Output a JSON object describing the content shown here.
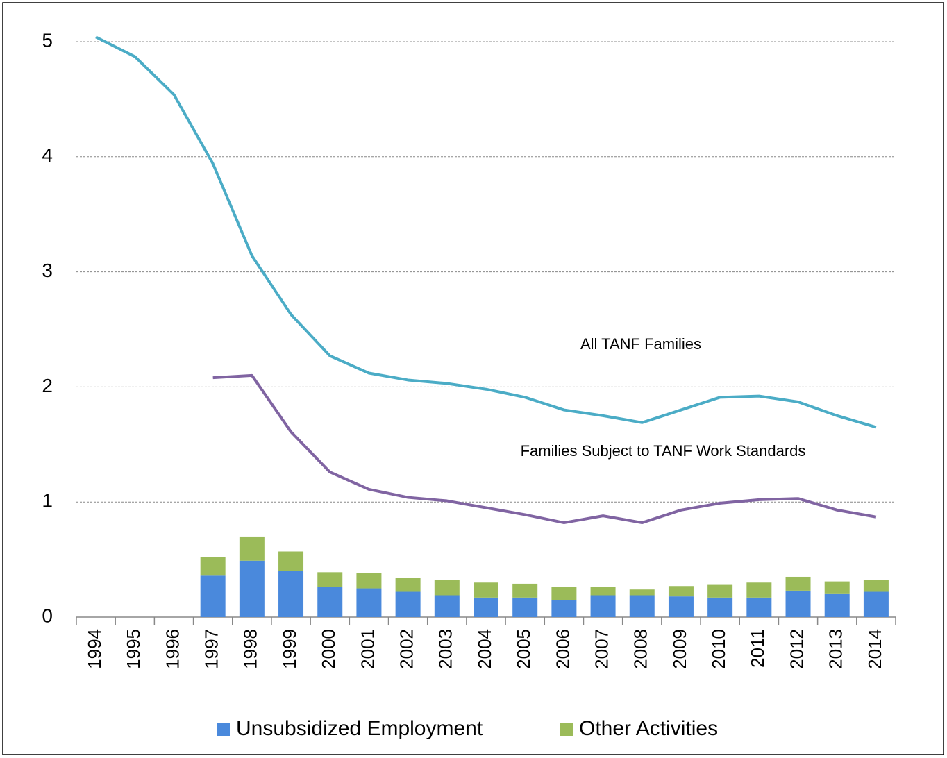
{
  "chart_data": {
    "type": "combo",
    "categories": [
      "1994",
      "1995",
      "1996",
      "1997",
      "1998",
      "1999",
      "2000",
      "2001",
      "2002",
      "2003",
      "2004",
      "2005",
      "2006",
      "2007",
      "2008",
      "2009",
      "2010",
      "2011",
      "2012",
      "2013",
      "2014"
    ],
    "ylim": [
      0,
      5
    ],
    "yticks": [
      0,
      1,
      2,
      3,
      4,
      5
    ],
    "grid": true,
    "legend": "bottom",
    "series": [
      {
        "name": "Unsubsidized Employment",
        "type": "bar",
        "color": "#4a89dc",
        "values": [
          null,
          null,
          null,
          0.36,
          0.49,
          0.4,
          0.26,
          0.25,
          0.22,
          0.19,
          0.17,
          0.17,
          0.15,
          0.19,
          0.19,
          0.18,
          0.17,
          0.17,
          0.23,
          0.2,
          0.22
        ]
      },
      {
        "name": "Other Activities",
        "type": "bar",
        "color": "#9bbb59",
        "values": [
          null,
          null,
          null,
          0.16,
          0.21,
          0.17,
          0.13,
          0.13,
          0.12,
          0.13,
          0.13,
          0.12,
          0.11,
          0.07,
          0.05,
          0.09,
          0.11,
          0.13,
          0.12,
          0.11,
          0.1
        ]
      },
      {
        "name": "All TANF Families",
        "type": "line",
        "color": "#4bacc6",
        "values": [
          5.04,
          4.87,
          4.54,
          3.94,
          3.14,
          2.63,
          2.27,
          2.12,
          2.06,
          2.03,
          1.98,
          1.91,
          1.8,
          1.75,
          1.69,
          1.8,
          1.91,
          1.92,
          1.87,
          1.75,
          1.65
        ]
      },
      {
        "name": "Families Subject to TANF Work Standards",
        "type": "line",
        "color": "#8064a2",
        "values": [
          null,
          null,
          null,
          2.08,
          2.1,
          1.61,
          1.26,
          1.11,
          1.04,
          1.01,
          0.95,
          0.89,
          0.82,
          0.88,
          0.82,
          0.93,
          0.99,
          1.02,
          1.03,
          0.93,
          0.87
        ]
      }
    ]
  }
}
